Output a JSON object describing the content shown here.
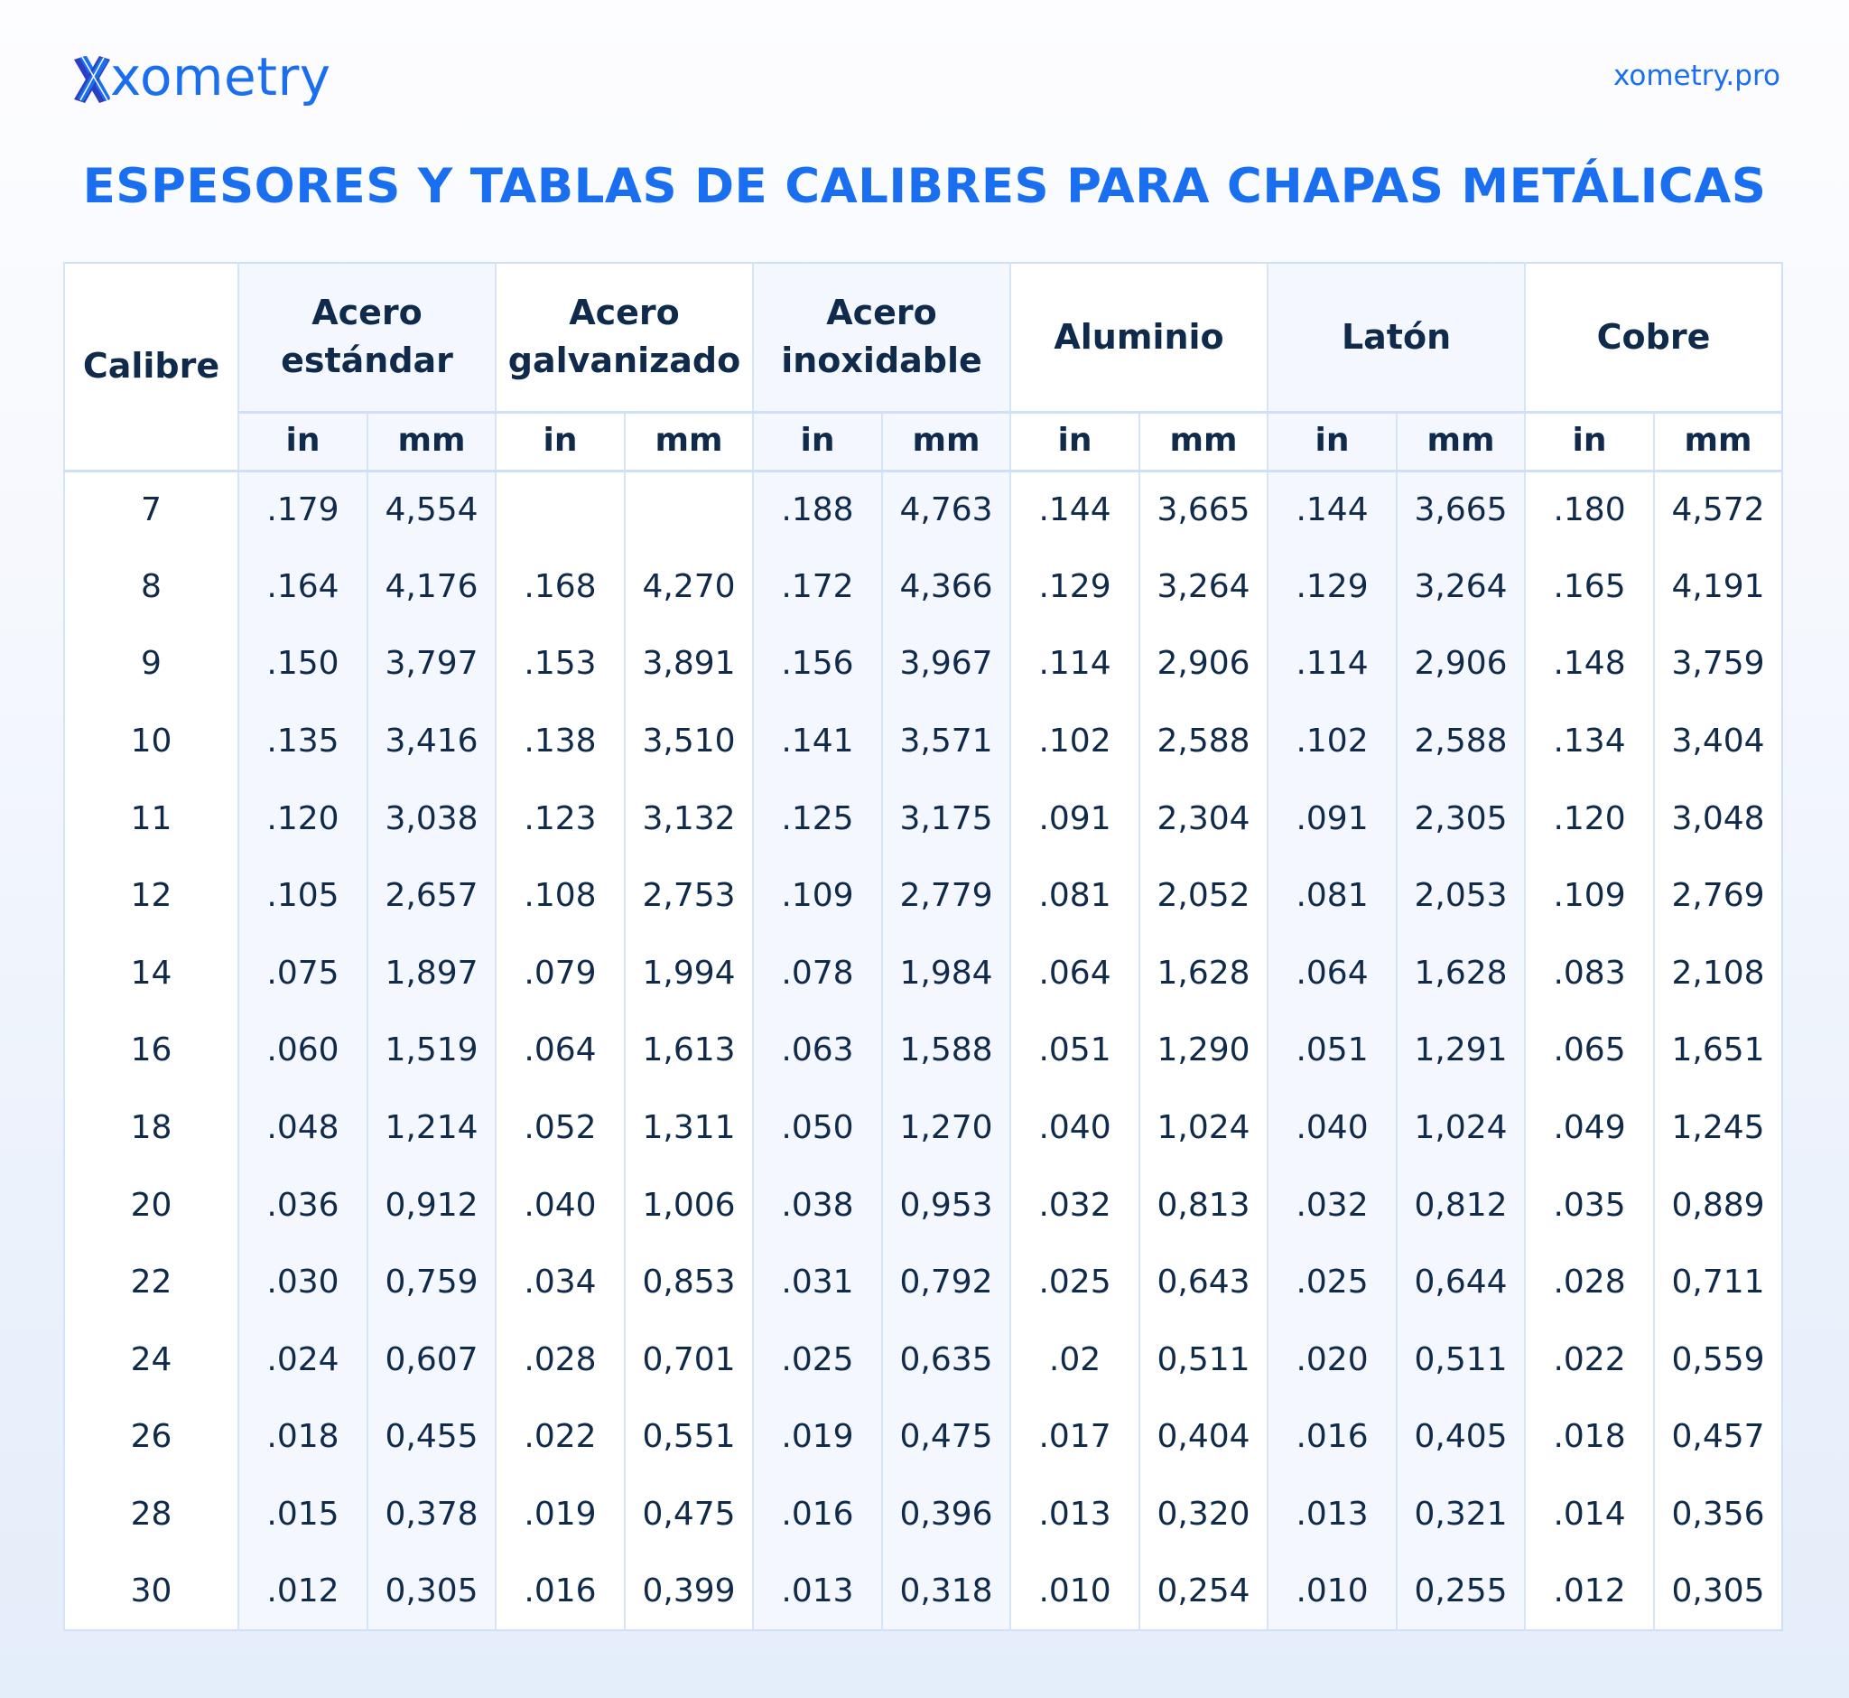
{
  "brand": {
    "name": "xometry",
    "logo_icon": "xometry-x-logo-icon",
    "site": "xometry.pro",
    "colors": {
      "primary": "#1a6ff0",
      "dark": "#2b3fc4",
      "text": "#0f2a4a",
      "shade": "#f4f7fe",
      "border": "#d6e4f7"
    }
  },
  "title": "ESPESORES Y TABLAS DE CALIBRES PARA CHAPAS METÁLICAS",
  "table": {
    "gauge_header": "Calibre",
    "materials": [
      {
        "line1": "Acero",
        "line2": "estándar",
        "in": "in",
        "mm": "mm"
      },
      {
        "line1": "Acero",
        "line2": "galvanizado",
        "in": "in",
        "mm": "mm"
      },
      {
        "line1": "Acero",
        "line2": "inoxidable",
        "in": "in",
        "mm": "mm"
      },
      {
        "line1": "Aluminio",
        "line2": "",
        "in": "in",
        "mm": "mm"
      },
      {
        "line1": "Latón",
        "line2": "",
        "in": "in",
        "mm": "mm"
      },
      {
        "line1": "Cobre",
        "line2": "",
        "in": "in",
        "mm": "mm"
      }
    ],
    "rows": [
      [
        "7",
        ".179",
        "4,554",
        "",
        "",
        ".188",
        "4,763",
        ".144",
        "3,665",
        ".144",
        "3,665",
        ".180",
        "4,572"
      ],
      [
        "8",
        ".164",
        "4,176",
        ".168",
        "4,270",
        ".172",
        "4,366",
        ".129",
        "3,264",
        ".129",
        "3,264",
        ".165",
        "4,191"
      ],
      [
        "9",
        ".150",
        "3,797",
        ".153",
        "3,891",
        ".156",
        "3,967",
        ".114",
        "2,906",
        ".114",
        "2,906",
        ".148",
        "3,759"
      ],
      [
        "10",
        ".135",
        "3,416",
        ".138",
        "3,510",
        ".141",
        "3,571",
        ".102",
        "2,588",
        ".102",
        "2,588",
        ".134",
        "3,404"
      ],
      [
        "11",
        ".120",
        "3,038",
        ".123",
        "3,132",
        ".125",
        "3,175",
        ".091",
        "2,304",
        ".091",
        "2,305",
        ".120",
        "3,048"
      ],
      [
        "12",
        ".105",
        "2,657",
        ".108",
        "2,753",
        ".109",
        "2,779",
        ".081",
        "2,052",
        ".081",
        "2,053",
        ".109",
        "2,769"
      ],
      [
        "14",
        ".075",
        "1,897",
        ".079",
        "1,994",
        ".078",
        "1,984",
        ".064",
        "1,628",
        ".064",
        "1,628",
        ".083",
        "2,108"
      ],
      [
        "16",
        ".060",
        "1,519",
        ".064",
        "1,613",
        ".063",
        "1,588",
        ".051",
        "1,290",
        ".051",
        "1,291",
        ".065",
        "1,651"
      ],
      [
        "18",
        ".048",
        "1,214",
        ".052",
        "1,311",
        ".050",
        "1,270",
        ".040",
        "1,024",
        ".040",
        "1,024",
        ".049",
        "1,245"
      ],
      [
        "20",
        ".036",
        "0,912",
        ".040",
        "1,006",
        ".038",
        "0,953",
        ".032",
        "0,813",
        ".032",
        "0,812",
        ".035",
        "0,889"
      ],
      [
        "22",
        ".030",
        "0,759",
        ".034",
        "0,853",
        ".031",
        "0,792",
        ".025",
        "0,643",
        ".025",
        "0,644",
        ".028",
        "0,711"
      ],
      [
        "24",
        ".024",
        "0,607",
        ".028",
        "0,701",
        ".025",
        "0,635",
        ".02",
        "0,511",
        ".020",
        "0,511",
        ".022",
        "0,559"
      ],
      [
        "26",
        ".018",
        "0,455",
        ".022",
        "0,551",
        ".019",
        "0,475",
        ".017",
        "0,404",
        ".016",
        "0,405",
        ".018",
        "0,457"
      ],
      [
        "28",
        ".015",
        "0,378",
        ".019",
        "0,475",
        ".016",
        "0,396",
        ".013",
        "0,320",
        ".013",
        "0,321",
        ".014",
        "0,356"
      ],
      [
        "30",
        ".012",
        "0,305",
        ".016",
        "0,399",
        ".013",
        "0,318",
        ".010",
        "0,254",
        ".010",
        "0,255",
        ".012",
        "0,305"
      ]
    ]
  }
}
